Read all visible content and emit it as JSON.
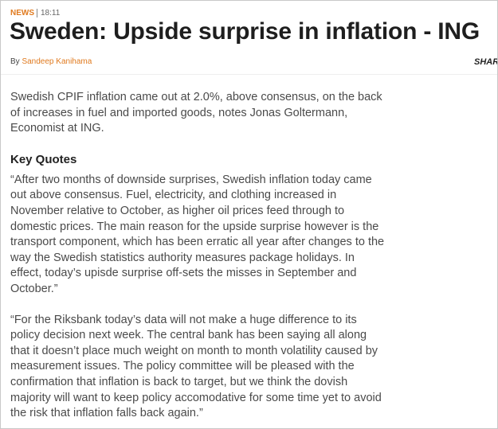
{
  "header": {
    "category": "NEWS",
    "time": "18:11",
    "title": "Sweden: Upside surprise in inflation - ING",
    "by": "By",
    "author": "Sandeep Kanihama",
    "share": "SHAR"
  },
  "body": {
    "intro": "Swedish CPIF inflation came out at 2.0%, above consensus, on the back of increases in fuel and imported goods, notes Jonas Goltermann, Economist at ING.",
    "heading": "Key Quotes",
    "quotes": [
      "“After two months of downside surprises, Swedish inflation today came out above consensus. Fuel, electricity, and clothing increased in November relative to October, as higher oil prices feed through to domestic prices. The main reason for the upside surprise however is the transport component, which has been erratic all year after changes to the way the Swedish statistics authority measures package holidays. In effect, today’s upisde surprise off-sets the misses in September and October.”",
      "“For the Riksbank today’s data will not make a huge difference to its policy decision next week. The central bank has been saying all along that it doesn’t place much weight on month to month volatility caused by measurement issues. The policy committee will be pleased with the confirmation that inflation is back to target, but we think the dovish majority will want to keep policy accomodative for some time yet to avoid the risk that inflation falls back again.”"
    ]
  }
}
